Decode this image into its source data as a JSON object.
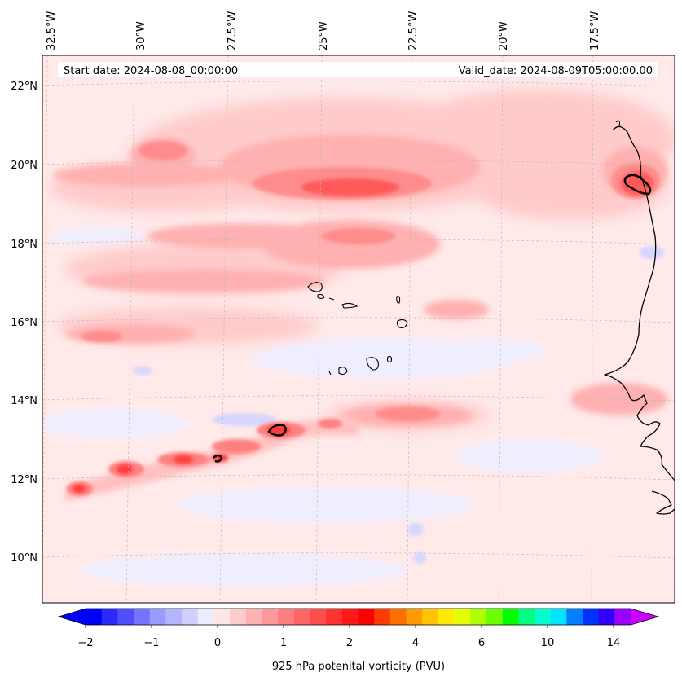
{
  "map": {
    "start_date": "Start date: 2024-08-08_00:00:00",
    "valid_date": "Valid_date: 2024-08-09T05:00:00.00",
    "lon_labels": [
      "32.5°W",
      "30°W",
      "27.5°W",
      "25°W",
      "22.5°W",
      "20°W",
      "17.5°W"
    ],
    "lat_labels": [
      "22°N",
      "20°N",
      "18°N",
      "16°N",
      "14°N",
      "12°N",
      "10°N"
    ],
    "colorbar": {
      "label": "925 hPa potenital vorticity (PVU)",
      "tick_labels": [
        "−2",
        "−1",
        "0",
        "1",
        "2",
        "4",
        "6",
        "10",
        "14"
      ],
      "colors": [
        "#0000ff",
        "#2a2aff",
        "#4f4fff",
        "#7474ff",
        "#9a9aff",
        "#b4b4ff",
        "#d0d0ff",
        "#ececff",
        "#ffe6e6",
        "#ffcccc",
        "#ffb2b2",
        "#ff9999",
        "#ff7f7f",
        "#ff6666",
        "#ff4c4c",
        "#ff3333",
        "#ff1919",
        "#ff0000",
        "#ff3d00",
        "#ff6f00",
        "#ff9a00",
        "#ffc300",
        "#ffea00",
        "#e6ff00",
        "#b0ff00",
        "#6cff00",
        "#00ff00",
        "#00ff80",
        "#00ffcc",
        "#00e5ff",
        "#0080ff",
        "#0033ff",
        "#3300ff",
        "#9900ff"
      ],
      "extend_min_color": "#0000ff",
      "extend_max_color": "#cc00ff"
    }
  }
}
